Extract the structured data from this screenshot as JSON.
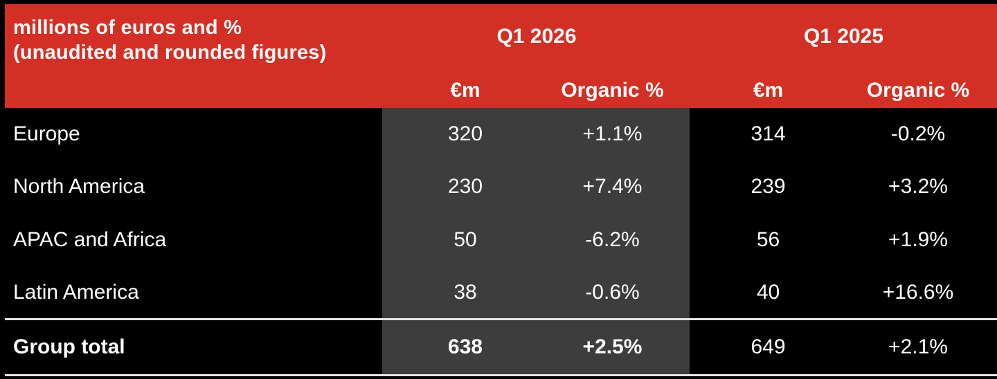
{
  "header": {
    "title_line1": "millions of euros and %",
    "title_line2": "(unaudited and rounded figures)",
    "period_current": "Q1 2026",
    "period_prior": "Q1 2025",
    "col_eur_current": "€m",
    "col_organic_current": "Organic %",
    "col_eur_prior": "€m",
    "col_organic_prior": "Organic %"
  },
  "rows": [
    {
      "region": "Europe",
      "eur_2026": "320",
      "org_2026": "+1.1%",
      "eur_2025": "314",
      "org_2025": "-0.2%"
    },
    {
      "region": "North America",
      "eur_2026": "230",
      "org_2026": "+7.4%",
      "eur_2025": "239",
      "org_2025": "+3.2%"
    },
    {
      "region": "APAC and Africa",
      "eur_2026": "50",
      "org_2026": "-6.2%",
      "eur_2025": "56",
      "org_2025": "+1.9%"
    },
    {
      "region": "Latin America",
      "eur_2026": "38",
      "org_2026": "-0.6%",
      "eur_2025": "40",
      "org_2025": "+16.6%"
    }
  ],
  "total": {
    "region": "Group total",
    "eur_2026": "638",
    "org_2026": "+2.5%",
    "eur_2025": "649",
    "org_2025": "+2.1%"
  },
  "colors": {
    "header_bg": "#d42f24",
    "highlight_column_bg": "#3d3d3d",
    "body_bg": "#000000",
    "text": "#ffffff"
  }
}
